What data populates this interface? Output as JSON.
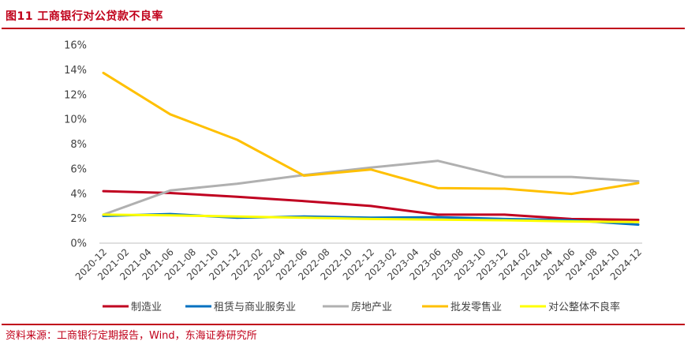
{
  "figure": {
    "title": "图11  工商银行对公贷款不良率",
    "source": "资料来源：工商银行定期报告，Wind，东海证券研究所"
  },
  "colors": {
    "accent": "#c0001a",
    "axis": "#bfbfbf",
    "text": "#404040"
  },
  "chart_data": {
    "type": "line",
    "grid": false,
    "legend_position": "bottom",
    "ylim": [
      0,
      16
    ],
    "y_ticks": [
      "0%",
      "2%",
      "4%",
      "6%",
      "8%",
      "10%",
      "12%",
      "14%",
      "16%"
    ],
    "x": [
      "2020-12",
      "2021-02",
      "2021-04",
      "2021-06",
      "2021-08",
      "2021-10",
      "2021-12",
      "2022-02",
      "2022-04",
      "2022-06",
      "2022-08",
      "2022-10",
      "2022-12",
      "2023-02",
      "2023-04",
      "2023-06",
      "2023-08",
      "2023-10",
      "2023-12",
      "2024-02",
      "2024-04",
      "2024-06",
      "2024-08",
      "2024-10",
      "2024-12"
    ],
    "series": [
      {
        "name": "制造业",
        "color": "#c00020",
        "points": [
          [
            "2020-12",
            4.2
          ],
          [
            "2021-06",
            4.05
          ],
          [
            "2021-12",
            3.75
          ],
          [
            "2022-06",
            3.4
          ],
          [
            "2022-12",
            3.0
          ],
          [
            "2023-06",
            2.3
          ],
          [
            "2023-12",
            2.3
          ],
          [
            "2024-06",
            1.95
          ],
          [
            "2024-12",
            1.88
          ]
        ]
      },
      {
        "name": "租赁与商业服务业",
        "color": "#0070c0",
        "points": [
          [
            "2020-12",
            2.2
          ],
          [
            "2021-06",
            2.35
          ],
          [
            "2021-12",
            2.05
          ],
          [
            "2022-06",
            2.15
          ],
          [
            "2022-12",
            2.05
          ],
          [
            "2023-06",
            2.1
          ],
          [
            "2023-12",
            1.95
          ],
          [
            "2024-06",
            1.85
          ],
          [
            "2024-12",
            1.5
          ]
        ]
      },
      {
        "name": "房地产业",
        "color": "#b0b0b0",
        "points": [
          [
            "2020-12",
            2.3
          ],
          [
            "2021-06",
            4.25
          ],
          [
            "2021-12",
            4.8
          ],
          [
            "2022-06",
            5.5
          ],
          [
            "2022-12",
            6.1
          ],
          [
            "2023-06",
            6.65
          ],
          [
            "2023-12",
            5.35
          ],
          [
            "2024-06",
            5.35
          ],
          [
            "2024-12",
            5.0
          ]
        ]
      },
      {
        "name": "批发零售业",
        "color": "#ffc000",
        "points": [
          [
            "2020-12",
            13.75
          ],
          [
            "2021-06",
            10.4
          ],
          [
            "2021-12",
            8.35
          ],
          [
            "2022-06",
            5.45
          ],
          [
            "2022-12",
            5.95
          ],
          [
            "2023-06",
            4.45
          ],
          [
            "2023-12",
            4.4
          ],
          [
            "2024-06",
            3.98
          ],
          [
            "2024-12",
            4.85
          ]
        ]
      },
      {
        "name": "对公整体不良率",
        "color": "#ffff00",
        "points": [
          [
            "2020-12",
            2.3
          ],
          [
            "2021-06",
            2.25
          ],
          [
            "2021-12",
            2.15
          ],
          [
            "2022-06",
            2.05
          ],
          [
            "2022-12",
            1.95
          ],
          [
            "2023-06",
            1.9
          ],
          [
            "2023-12",
            1.85
          ],
          [
            "2024-06",
            1.75
          ],
          [
            "2024-12",
            1.7
          ]
        ]
      }
    ]
  }
}
